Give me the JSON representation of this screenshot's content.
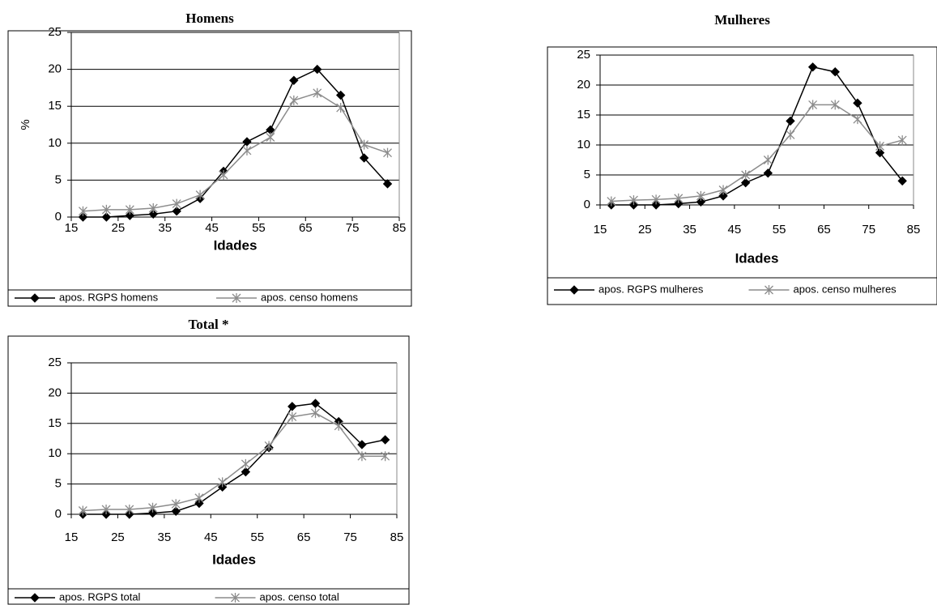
{
  "chart_data": [
    {
      "type": "line",
      "title": "Homens",
      "xlabel": "Idades",
      "ylabel": "%",
      "x": [
        17.5,
        22.5,
        27.5,
        32.5,
        37.5,
        42.5,
        47.5,
        52.5,
        57.5,
        62.5,
        67.5,
        72.5,
        77.5,
        82.5
      ],
      "xlim": [
        15,
        85
      ],
      "xticks": [
        15,
        25,
        35,
        45,
        55,
        65,
        75,
        85
      ],
      "ylim": [
        0,
        25
      ],
      "yticks": [
        0,
        5,
        10,
        15,
        20,
        25
      ],
      "grid": true,
      "legend": "bottom",
      "series": [
        {
          "name": "apos. RGPS homens",
          "color": "#000000",
          "marker": "diamond",
          "values": [
            0,
            0,
            0.2,
            0.4,
            0.8,
            2.5,
            6.2,
            10.2,
            11.8,
            18.5,
            20,
            16.5,
            8,
            4.5
          ]
        },
        {
          "name": "apos. censo homens",
          "color": "#8c8c8c",
          "marker": "asterisk",
          "values": [
            0.8,
            1,
            1,
            1.2,
            1.8,
            3,
            5.7,
            9,
            10.8,
            15.8,
            16.8,
            14.8,
            9.8,
            8.7
          ]
        }
      ]
    },
    {
      "type": "line",
      "title": "Mulheres",
      "xlabel": "Idades",
      "x": [
        17.5,
        22.5,
        27.5,
        32.5,
        37.5,
        42.5,
        47.5,
        52.5,
        57.5,
        62.5,
        67.5,
        72.5,
        77.5,
        82.5
      ],
      "xlim": [
        15,
        85
      ],
      "xticks": [
        15,
        25,
        35,
        45,
        55,
        65,
        75,
        85
      ],
      "ylim": [
        0,
        25
      ],
      "yticks": [
        0,
        5,
        10,
        15,
        20,
        25
      ],
      "grid": true,
      "legend": "bottom",
      "series": [
        {
          "name": "apos. RGPS mulheres",
          "color": "#000000",
          "marker": "diamond",
          "values": [
            0,
            0,
            0,
            0.2,
            0.5,
            1.5,
            3.7,
            5.3,
            14,
            23,
            22.2,
            17,
            8.7,
            4
          ]
        },
        {
          "name": "apos. censo mulheres",
          "color": "#8c8c8c",
          "marker": "asterisk",
          "values": [
            0.6,
            0.8,
            0.9,
            1.1,
            1.5,
            2.5,
            5,
            7.5,
            11.7,
            16.7,
            16.7,
            14.3,
            9.8,
            10.8
          ]
        }
      ]
    },
    {
      "type": "line",
      "title": "Total *",
      "xlabel": "Idades",
      "x": [
        17.5,
        22.5,
        27.5,
        32.5,
        37.5,
        42.5,
        47.5,
        52.5,
        57.5,
        62.5,
        67.5,
        72.5,
        77.5,
        82.5
      ],
      "xlim": [
        15,
        85
      ],
      "xticks": [
        15,
        25,
        35,
        45,
        55,
        65,
        75,
        85
      ],
      "ylim": [
        0,
        25
      ],
      "yticks": [
        0,
        5,
        10,
        15,
        20,
        25
      ],
      "grid": true,
      "legend": "bottom",
      "series": [
        {
          "name": "apos. RGPS total",
          "color": "#000000",
          "marker": "diamond",
          "values": [
            0,
            0,
            0,
            0.2,
            0.5,
            1.8,
            4.5,
            7,
            11,
            17.8,
            18.3,
            15.3,
            11.5,
            12.3
          ]
        },
        {
          "name": "apos. censo total",
          "color": "#8c8c8c",
          "marker": "asterisk",
          "values": [
            0.6,
            0.8,
            0.8,
            1.1,
            1.7,
            2.7,
            5.3,
            8.3,
            11.3,
            16.1,
            16.7,
            14.6,
            9.6,
            9.6
          ]
        }
      ]
    }
  ]
}
